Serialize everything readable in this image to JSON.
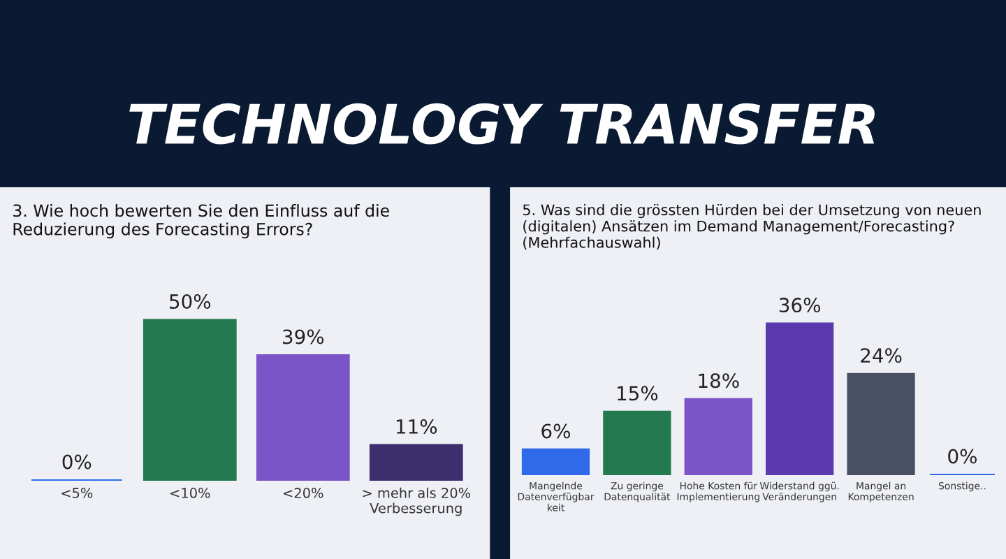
{
  "chart_data": [
    {
      "type": "bar",
      "title": "3. Wie hoch bewerten Sie den Einfluss auf die\nReduzierung des Forecasting Errors?",
      "annotations": [
        "TECHNOLOGY TRANSFER"
      ],
      "categories": [
        "<5%",
        "<10%",
        "<20%",
        "> mehr als 20%\nVerbesserung"
      ],
      "values": [
        0,
        50,
        39,
        11
      ],
      "colors": [
        "#2f6be8",
        "#237a50",
        "#7b55c8",
        "#3d2f6e"
      ],
      "value_labels": [
        "0%",
        "50%",
        "39%",
        "11%"
      ],
      "grid": false,
      "legend": false
    },
    {
      "type": "bar",
      "title": "5. Was sind die grössten Hürden bei der Umsetzung von neuen\n(digitalen) Ansätzen im Demand Management/Forecasting?\n(Mehrfachauswahl)",
      "categories": [
        "Mangelnde\nDatenverfügbar\nkeit",
        "Zu geringe\nDatenqualität",
        "Hohe Kosten für\nImplementierung",
        "Widerstand ggü.\nVeränderungen",
        "Mangel an\nKompetenzen",
        "Sonstige.."
      ],
      "values": [
        6,
        15,
        18,
        36,
        24,
        0
      ],
      "colors": [
        "#2f6be8",
        "#237a50",
        "#7b55c8",
        "#5b3ab0",
        "#4a5064",
        "#2f6be8"
      ],
      "value_labels": [
        "6%",
        "15%",
        "18%",
        "36%",
        "24%",
        "0%"
      ],
      "grid": false,
      "legend": false
    }
  ]
}
